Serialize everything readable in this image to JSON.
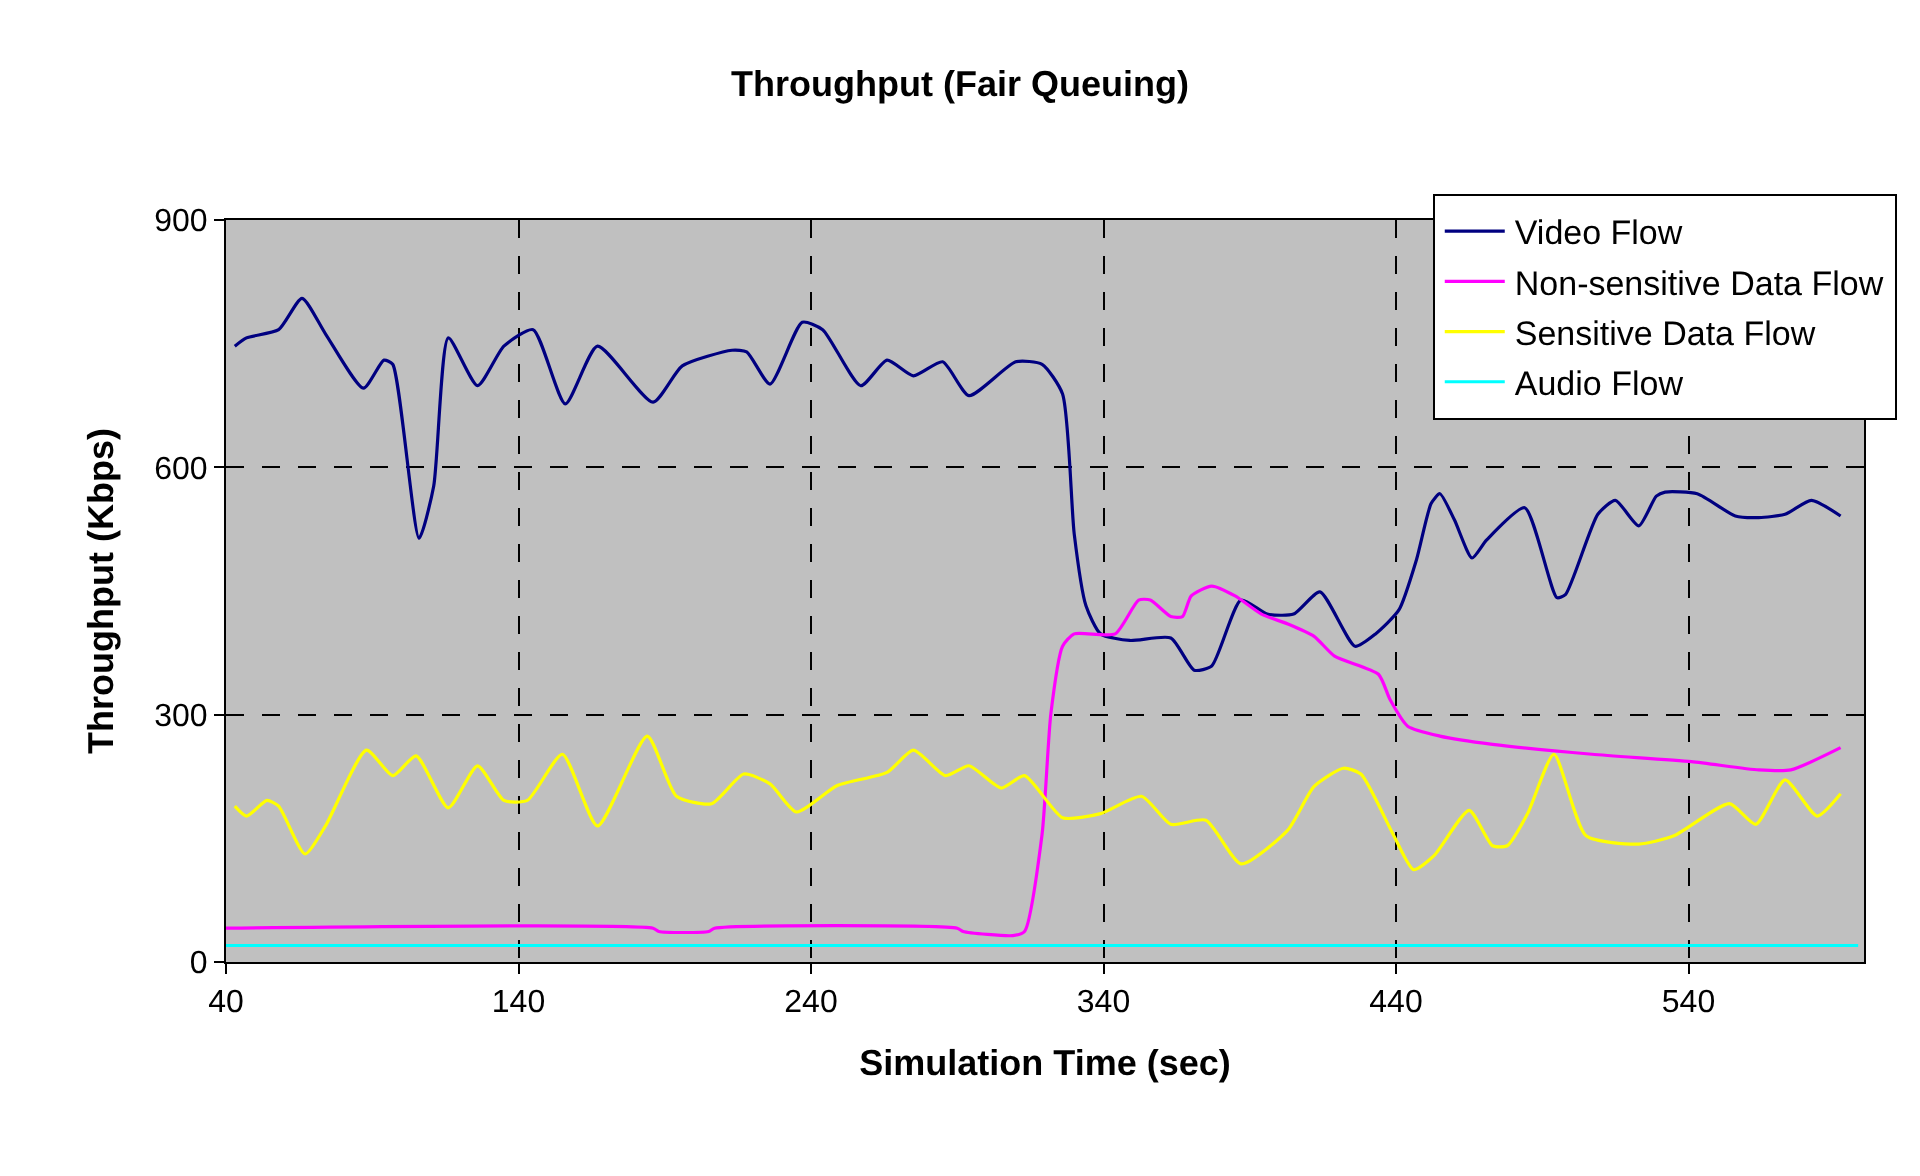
{
  "chart_data": {
    "type": "line",
    "title": "Throughput (Fair Queuing)",
    "xlabel": "Simulation Time (sec)",
    "ylabel": "Throughput (Kbps)",
    "xlim": [
      40,
      600
    ],
    "xticks": [
      40,
      140,
      240,
      340,
      440,
      540
    ],
    "ylim": [
      0,
      900
    ],
    "yticks": [
      0,
      300,
      600,
      900
    ],
    "grid": true,
    "legend": "top right",
    "marker": "none",
    "line_style": "solid",
    "series": [
      {
        "name": "Video Flow",
        "color": "#000080",
        "x": [
          43,
          47,
          58,
          66,
          74,
          87,
          94,
          97,
          106,
          111,
          116,
          126,
          135,
          145,
          156,
          167,
          186,
          196,
          213,
          218,
          226,
          237,
          244,
          257,
          266,
          275,
          285,
          294,
          310,
          319,
          326,
          330,
          334,
          339,
          349,
          363,
          371,
          377,
          387,
          396,
          405,
          414,
          426,
          433,
          441,
          447,
          452,
          455,
          460,
          466,
          471,
          484,
          495,
          498,
          509,
          515,
          523,
          529,
          532,
          543,
          556,
          564,
          573,
          582,
          592
        ],
        "values": [
          747,
          757,
          767,
          805,
          762,
          696,
          730,
          725,
          514,
          577,
          757,
          699,
          747,
          767,
          677,
          747,
          679,
          723,
          742,
          740,
          701,
          776,
          767,
          699,
          730,
          711,
          728,
          687,
          728,
          725,
          689,
          519,
          432,
          398,
          390,
          393,
          354,
          359,
          439,
          422,
          422,
          449,
          383,
          398,
          427,
          488,
          556,
          568,
          536,
          490,
          512,
          551,
          442,
          446,
          543,
          560,
          529,
          565,
          570,
          568,
          541,
          539,
          543,
          560,
          541
        ]
      },
      {
        "name": "Non-sensitive Data Flow",
        "color": "#ff00ff",
        "x": [
          40,
          186,
          188,
          205,
          207,
          290,
          292,
          309,
          313,
          319,
          322,
          326,
          330,
          344,
          352,
          356,
          363,
          367,
          370,
          377,
          385,
          394,
          403,
          412,
          419,
          434,
          438,
          444,
          455,
          473,
          507,
          541,
          564,
          575,
          592
        ],
        "values": [
          41,
          41,
          37,
          37,
          41,
          41,
          37,
          32,
          37,
          155,
          301,
          383,
          398,
          398,
          439,
          439,
          419,
          419,
          444,
          456,
          444,
          422,
          410,
          395,
          371,
          349,
          318,
          286,
          274,
          264,
          252,
          243,
          233,
          233,
          260
        ]
      },
      {
        "name": "Sensitive Data Flow",
        "color": "#ffff00",
        "x": [
          43,
          47,
          54,
          58,
          67,
          74,
          88,
          97,
          105,
          116,
          126,
          135,
          143,
          155,
          167,
          184,
          194,
          206,
          217,
          226,
          235,
          249,
          266,
          275,
          286,
          294,
          305,
          313,
          326,
          339,
          353,
          363,
          375,
          387,
          403,
          412,
          422,
          428,
          439,
          446,
          453,
          465,
          473,
          478,
          485,
          494,
          505,
          523,
          535,
          554,
          563,
          573,
          584,
          592
        ],
        "values": [
          189,
          177,
          196,
          189,
          131,
          165,
          257,
          226,
          250,
          187,
          238,
          196,
          196,
          252,
          165,
          274,
          201,
          192,
          228,
          216,
          182,
          214,
          230,
          257,
          226,
          238,
          211,
          226,
          175,
          180,
          201,
          167,
          172,
          119,
          160,
          213,
          235,
          228,
          155,
          112,
          129,
          184,
          141,
          141,
          180,
          252,
          153,
          143,
          153,
          192,
          167,
          221,
          177,
          204
        ]
      },
      {
        "name": "Audio Flow",
        "color": "#00ffff",
        "x": [
          40,
          598
        ],
        "values": [
          20,
          20
        ]
      }
    ]
  }
}
